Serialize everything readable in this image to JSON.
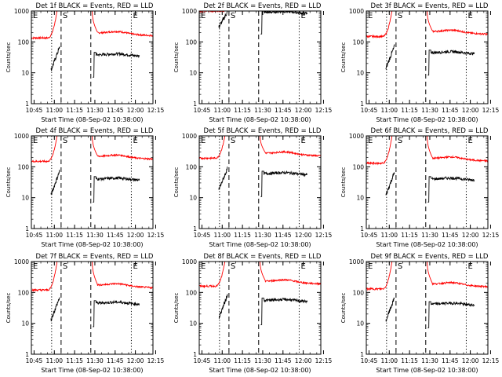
{
  "chart_data": {
    "type": "line",
    "ylabel": "Counts/sec",
    "xlabel": "Start Time (08-Sep-02 10:38:00)",
    "y_scale": "log",
    "ylim": [
      1,
      1000
    ],
    "y_ticks": [
      "1",
      "10",
      "100",
      "1000"
    ],
    "xlim_min": [
      5,
      95
    ],
    "x_ticks": [
      "10:45",
      "11:00",
      "11:15",
      "11:30",
      "11:45",
      "12:00",
      "12:15"
    ],
    "x_tick_min": [
      7,
      22,
      37,
      52,
      67,
      82,
      97
    ],
    "markers": [
      {
        "label": "E",
        "x": 5,
        "style": "none"
      },
      {
        "label": "",
        "x": 20,
        "style": "dotted"
      },
      {
        "label": "S",
        "x": 27,
        "style": "dashed"
      },
      {
        "label": "",
        "x": 49,
        "style": "dashed"
      },
      {
        "label": "E",
        "x": 79,
        "style": "dotted"
      }
    ],
    "colors": {
      "events": "#000000",
      "lld": "#ff0000"
    },
    "panels": [
      {
        "title": "Det 1f BLACK = Events, RED = LLD",
        "lld_base": 135,
        "lld_peak": 1000,
        "events_base": 38,
        "events_ramp": [
          12,
          70
        ]
      },
      {
        "title": "Det 2f BLACK = Events, RED = LLD",
        "lld_base": 1000,
        "lld_peak": 1000,
        "events_base": 900,
        "events_ramp": [
          300,
          950
        ]
      },
      {
        "title": "Det 3f BLACK = Events, RED = LLD",
        "lld_base": 150,
        "lld_peak": 1000,
        "events_base": 45,
        "events_ramp": [
          14,
          75
        ]
      },
      {
        "title": "Det 4f BLACK = Events, RED = LLD",
        "lld_base": 150,
        "lld_peak": 1000,
        "events_base": 40,
        "events_ramp": [
          12,
          75
        ]
      },
      {
        "title": "Det 5f BLACK = Events, RED = LLD",
        "lld_base": 190,
        "lld_peak": 1000,
        "events_base": 60,
        "events_ramp": [
          18,
          90
        ]
      },
      {
        "title": "Det 6f BLACK = Events, RED = LLD",
        "lld_base": 130,
        "lld_peak": 1000,
        "events_base": 40,
        "events_ramp": [
          12,
          70
        ]
      },
      {
        "title": "Det 7f BLACK = Events, RED = LLD",
        "lld_base": 120,
        "lld_peak": 1000,
        "events_base": 45,
        "events_ramp": [
          13,
          70
        ]
      },
      {
        "title": "Det 8f BLACK = Events, RED = LLD",
        "lld_base": 160,
        "lld_peak": 1000,
        "events_base": 55,
        "events_ramp": [
          15,
          85
        ]
      },
      {
        "title": "Det 9f BLACK = Events, RED = LLD",
        "lld_base": 130,
        "lld_peak": 1000,
        "events_base": 42,
        "events_ramp": [
          12,
          70
        ]
      }
    ]
  }
}
